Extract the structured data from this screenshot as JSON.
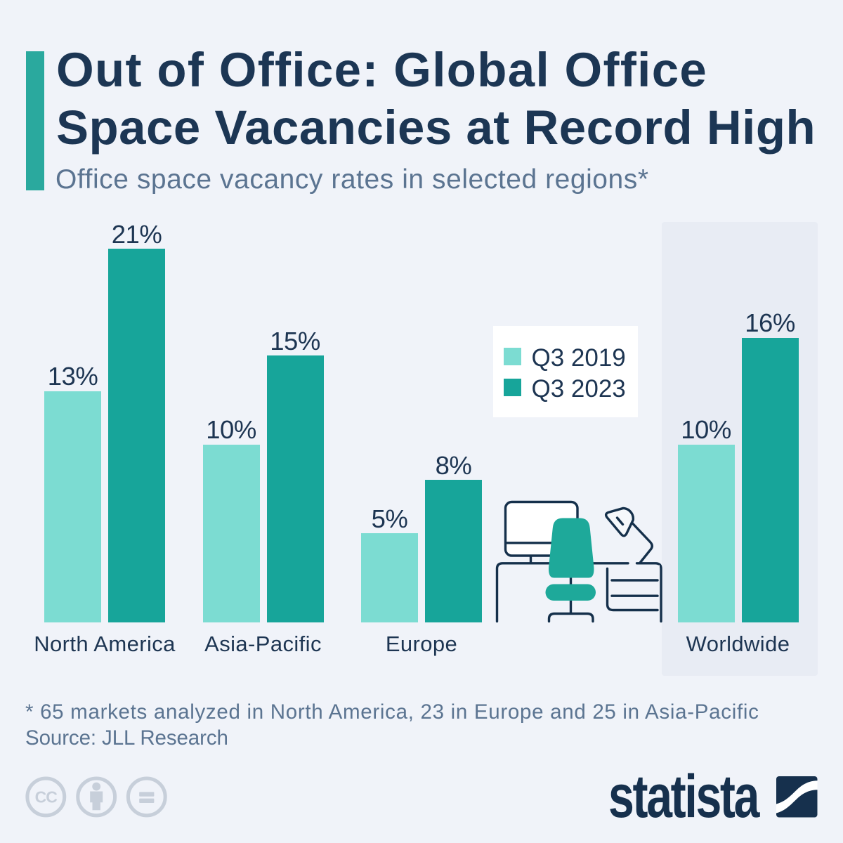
{
  "page": {
    "background": "#f0f3f9",
    "accent_color": "#2aa99e",
    "navy": "#1c3654",
    "muted_blue": "#5b7491",
    "highlight_panel_color": "#e8ecf4"
  },
  "header": {
    "title_line1": "Out of Office: Global Office",
    "title_line2": "Space Vacancies at Record High",
    "subtitle": "Office space vacancy rates in selected regions*"
  },
  "chart_data": {
    "type": "bar",
    "title": "Office space vacancy rates in selected regions",
    "categories": [
      "North America",
      "Asia-Pacific",
      "Europe",
      "Worldwide"
    ],
    "series": [
      {
        "name": "Q3 2019",
        "color": "#7cdcd2",
        "values": [
          13,
          10,
          5,
          10
        ]
      },
      {
        "name": "Q3 2023",
        "color": "#17a59a",
        "values": [
          21,
          15,
          8,
          16
        ]
      }
    ],
    "unit": "%",
    "ylim": [
      0,
      22
    ],
    "grid": false,
    "legend_position": "center-right",
    "highlighted_category": "Worldwide",
    "value_label_format": "{v}%"
  },
  "legend": {
    "items": [
      {
        "label": "Q3 2019",
        "color": "#7cdcd2"
      },
      {
        "label": "Q3 2023",
        "color": "#17a59a"
      }
    ]
  },
  "illustration": {
    "name": "office-desk-with-chair-monitor-and-lamp",
    "stroke_color": "#15304b",
    "fill_color": "#1ea99a"
  },
  "footer": {
    "footnote": "* 65 markets analyzed in North America, 23 in Europe and 25 in Asia-Pacific",
    "source": "Source: JLL Research",
    "license_icons": [
      "creative-commons",
      "attribution",
      "no-derivatives"
    ],
    "brand": "statista"
  }
}
